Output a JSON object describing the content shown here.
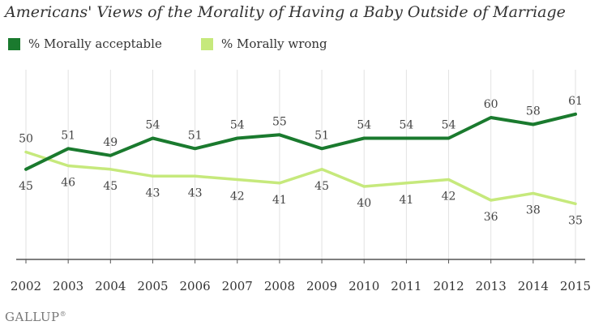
{
  "title": "Americans' Views of the Morality of Having a Baby Outside of Marriage",
  "footer": {
    "source": "GALLUP",
    "mark": "®"
  },
  "colors": {
    "acceptable": "#1a7a2e",
    "wrong": "#c6e97c",
    "grid": "#e2e2e2",
    "axis": "#555555",
    "text": "#444444"
  },
  "chart_data": {
    "type": "line",
    "title": "Americans' Views of the Morality of Having a Baby Outside of Marriage",
    "xlabel": "",
    "ylabel": "",
    "grid": true,
    "legend_position": "top-left",
    "categories": [
      "2002",
      "2003",
      "2004",
      "2005",
      "2006",
      "2007",
      "2008",
      "2009",
      "2010",
      "2011",
      "2012",
      "2013",
      "2014",
      "2015"
    ],
    "series": [
      {
        "name": "% Morally acceptable",
        "values": [
          45,
          51,
          49,
          54,
          51,
          54,
          55,
          51,
          54,
          54,
          54,
          60,
          58,
          61
        ]
      },
      {
        "name": "% Morally wrong",
        "values": [
          50,
          46,
          45,
          43,
          43,
          42,
          41,
          45,
          40,
          41,
          42,
          36,
          38,
          35
        ]
      }
    ]
  }
}
